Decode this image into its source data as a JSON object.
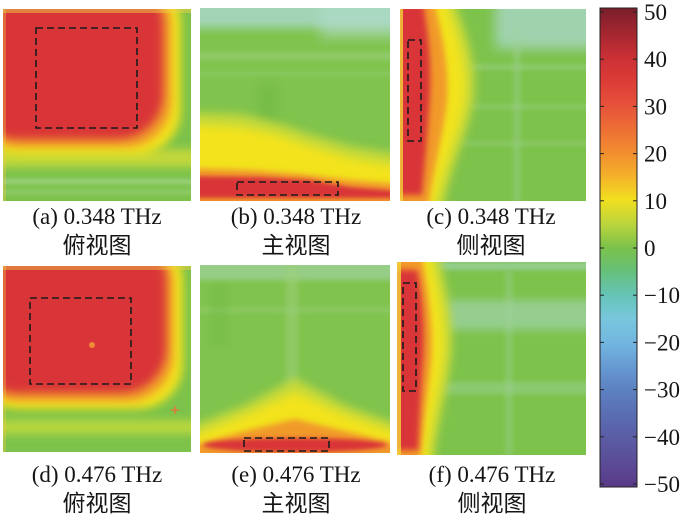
{
  "chart_data": {
    "type": "heatmap",
    "panels": [
      {
        "caption": "(a) 0.348 THz",
        "view": "俯视图"
      },
      {
        "caption": "(b) 0.348 THz",
        "view": "主视图"
      },
      {
        "caption": "(c) 0.348 THz",
        "view": "侧视图"
      },
      {
        "caption": "(d) 0.476 THz",
        "view": "俯视图"
      },
      {
        "caption": "(e) 0.476 THz",
        "view": "主视图"
      },
      {
        "caption": "(f) 0.476 THz",
        "view": "侧视图"
      }
    ],
    "colorbar": {
      "range": [
        -50,
        50
      ],
      "ticks": [
        50,
        40,
        30,
        20,
        10,
        0,
        -10,
        -20,
        -30,
        -40,
        -50
      ],
      "tick_labels": [
        "50",
        "40",
        "30",
        "20",
        "10",
        "0",
        "−10",
        "−20",
        "−30",
        "−40",
        "−50"
      ],
      "colormap": [
        "#7a1e2c",
        "#a2262f",
        "#c82f35",
        "#dc3b37",
        "#e5503a",
        "#ed6d35",
        "#f18c30",
        "#f4b02a",
        "#f2df1f",
        "#bcd53c",
        "#7cc24a",
        "#66c07a",
        "#66c4b8",
        "#78c7dd",
        "#72b6e0",
        "#6699d2",
        "#5c80c0",
        "#5a6db2",
        "#5b5ca4",
        "#5b4b96",
        "#5a3a88"
      ]
    }
  }
}
